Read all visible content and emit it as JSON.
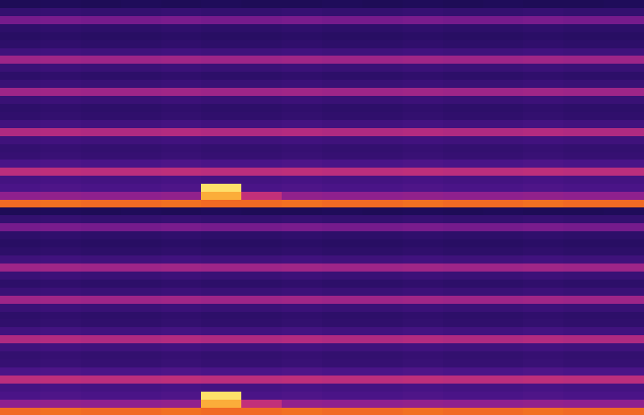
{
  "chart_data": [
    {
      "type": "heatmap",
      "tick_labels": false,
      "zlim": [
        0,
        100
      ],
      "cells": [
        [
          14,
          15,
          14,
          15,
          14,
          15,
          14,
          14,
          15,
          14,
          15,
          14,
          15,
          14,
          14,
          15
        ],
        [
          22,
          23,
          22,
          22,
          23,
          22,
          22,
          23,
          22,
          22,
          23,
          22,
          22,
          23,
          22,
          22
        ],
        [
          40,
          41,
          40,
          40,
          41,
          40,
          40,
          41,
          40,
          40,
          41,
          40,
          40,
          41,
          40,
          40
        ],
        [
          20,
          21,
          20,
          20,
          21,
          20,
          20,
          21,
          20,
          20,
          21,
          20,
          20,
          21,
          20,
          20
        ],
        [
          18,
          19,
          18,
          18,
          19,
          18,
          18,
          19,
          18,
          18,
          19,
          18,
          18,
          19,
          18,
          18
        ],
        [
          20,
          21,
          20,
          20,
          21,
          20,
          20,
          21,
          20,
          20,
          21,
          20,
          20,
          21,
          20,
          20
        ],
        [
          26,
          27,
          26,
          26,
          27,
          26,
          26,
          27,
          26,
          26,
          27,
          26,
          26,
          27,
          26,
          26
        ],
        [
          50,
          51,
          50,
          50,
          51,
          50,
          50,
          51,
          50,
          50,
          51,
          50,
          50,
          51,
          50,
          50
        ],
        [
          24,
          25,
          24,
          24,
          25,
          24,
          24,
          25,
          24,
          24,
          25,
          24,
          24,
          25,
          24,
          24
        ],
        [
          20,
          21,
          20,
          20,
          21,
          20,
          20,
          21,
          20,
          20,
          21,
          20,
          20,
          21,
          20,
          20
        ],
        [
          24,
          25,
          24,
          24,
          25,
          24,
          24,
          25,
          24,
          24,
          25,
          24,
          24,
          25,
          24,
          24
        ],
        [
          50,
          51,
          50,
          50,
          51,
          50,
          50,
          51,
          50,
          50,
          51,
          50,
          50,
          51,
          50,
          50
        ],
        [
          24,
          25,
          24,
          24,
          25,
          24,
          24,
          25,
          24,
          24,
          25,
          24,
          24,
          25,
          24,
          24
        ],
        [
          20,
          21,
          20,
          20,
          21,
          20,
          20,
          21,
          20,
          20,
          21,
          20,
          20,
          21,
          20,
          20
        ],
        [
          21,
          22,
          21,
          21,
          22,
          21,
          21,
          22,
          21,
          21,
          22,
          21,
          21,
          22,
          21,
          21
        ],
        [
          27,
          28,
          27,
          27,
          28,
          27,
          27,
          28,
          27,
          27,
          28,
          27,
          27,
          28,
          27,
          27
        ],
        [
          55,
          56,
          55,
          55,
          56,
          55,
          55,
          56,
          55,
          55,
          56,
          55,
          55,
          56,
          55,
          55
        ],
        [
          26,
          27,
          26,
          26,
          27,
          26,
          26,
          27,
          26,
          26,
          27,
          26,
          26,
          27,
          26,
          26
        ],
        [
          22,
          23,
          22,
          22,
          23,
          22,
          22,
          23,
          22,
          22,
          23,
          22,
          22,
          23,
          22,
          22
        ],
        [
          23,
          24,
          23,
          23,
          24,
          23,
          23,
          24,
          23,
          23,
          24,
          23,
          23,
          24,
          23,
          23
        ],
        [
          30,
          31,
          30,
          30,
          31,
          30,
          30,
          31,
          30,
          30,
          31,
          30,
          30,
          31,
          30,
          30
        ],
        [
          58,
          59,
          58,
          58,
          59,
          58,
          58,
          59,
          58,
          58,
          59,
          58,
          58,
          59,
          58,
          58
        ],
        [
          28,
          29,
          28,
          28,
          29,
          28,
          28,
          29,
          28,
          28,
          29,
          28,
          28,
          29,
          28,
          28
        ],
        [
          30,
          31,
          30,
          30,
          31,
          98,
          30,
          31,
          30,
          30,
          31,
          30,
          30,
          31,
          30,
          30
        ],
        [
          46,
          47,
          46,
          46,
          47,
          92,
          60,
          47,
          46,
          46,
          47,
          46,
          46,
          47,
          46,
          46
        ],
        [
          82,
          83,
          82,
          82,
          83,
          82,
          82,
          83,
          82,
          82,
          83,
          82,
          82,
          83,
          82,
          82
        ]
      ]
    },
    {
      "type": "heatmap",
      "tick_labels": false,
      "zlim": [
        0,
        100
      ],
      "cells": [
        [
          14,
          15,
          14,
          15,
          14,
          15,
          14,
          14,
          15,
          14,
          15,
          14,
          15,
          14,
          14,
          15
        ],
        [
          22,
          23,
          22,
          22,
          23,
          22,
          22,
          23,
          22,
          22,
          23,
          22,
          22,
          23,
          22,
          22
        ],
        [
          40,
          41,
          40,
          40,
          41,
          40,
          40,
          41,
          40,
          40,
          41,
          40,
          40,
          41,
          40,
          40
        ],
        [
          20,
          21,
          20,
          20,
          21,
          20,
          20,
          21,
          20,
          20,
          21,
          20,
          20,
          21,
          20,
          20
        ],
        [
          18,
          19,
          18,
          18,
          19,
          18,
          18,
          19,
          18,
          18,
          19,
          18,
          18,
          19,
          18,
          18
        ],
        [
          20,
          21,
          20,
          20,
          21,
          20,
          20,
          21,
          20,
          20,
          21,
          20,
          20,
          21,
          20,
          20
        ],
        [
          26,
          27,
          26,
          26,
          27,
          26,
          26,
          27,
          26,
          26,
          27,
          26,
          26,
          27,
          26,
          26
        ],
        [
          50,
          51,
          50,
          50,
          51,
          50,
          50,
          51,
          50,
          50,
          51,
          50,
          50,
          51,
          50,
          50
        ],
        [
          24,
          25,
          24,
          24,
          25,
          24,
          24,
          25,
          24,
          24,
          25,
          24,
          24,
          25,
          24,
          24
        ],
        [
          20,
          21,
          20,
          20,
          21,
          20,
          20,
          21,
          20,
          20,
          21,
          20,
          20,
          21,
          20,
          20
        ],
        [
          24,
          25,
          24,
          24,
          25,
          24,
          24,
          25,
          24,
          24,
          25,
          24,
          24,
          25,
          24,
          24
        ],
        [
          50,
          51,
          50,
          50,
          51,
          50,
          50,
          51,
          50,
          50,
          51,
          50,
          50,
          51,
          50,
          50
        ],
        [
          24,
          25,
          24,
          24,
          25,
          24,
          24,
          25,
          24,
          24,
          25,
          24,
          24,
          25,
          24,
          24
        ],
        [
          20,
          21,
          20,
          20,
          21,
          20,
          20,
          21,
          20,
          20,
          21,
          20,
          20,
          21,
          20,
          20
        ],
        [
          21,
          22,
          21,
          21,
          22,
          21,
          21,
          22,
          21,
          21,
          22,
          21,
          21,
          22,
          21,
          21
        ],
        [
          27,
          28,
          27,
          27,
          28,
          27,
          27,
          28,
          27,
          27,
          28,
          27,
          27,
          28,
          27,
          27
        ],
        [
          55,
          56,
          55,
          55,
          56,
          55,
          55,
          56,
          55,
          55,
          56,
          55,
          55,
          56,
          55,
          55
        ],
        [
          26,
          27,
          26,
          26,
          27,
          26,
          26,
          27,
          26,
          26,
          27,
          26,
          26,
          27,
          26,
          26
        ],
        [
          22,
          23,
          22,
          22,
          23,
          22,
          22,
          23,
          22,
          22,
          23,
          22,
          22,
          23,
          22,
          22
        ],
        [
          23,
          24,
          23,
          23,
          24,
          23,
          23,
          24,
          23,
          23,
          24,
          23,
          23,
          24,
          23,
          23
        ],
        [
          30,
          31,
          30,
          30,
          31,
          30,
          30,
          31,
          30,
          30,
          31,
          30,
          30,
          31,
          30,
          30
        ],
        [
          58,
          59,
          58,
          58,
          59,
          58,
          58,
          59,
          58,
          58,
          59,
          58,
          58,
          59,
          58,
          58
        ],
        [
          28,
          29,
          28,
          28,
          29,
          28,
          28,
          29,
          28,
          28,
          29,
          28,
          28,
          29,
          28,
          28
        ],
        [
          30,
          31,
          30,
          30,
          31,
          98,
          30,
          31,
          30,
          30,
          31,
          30,
          30,
          31,
          30,
          30
        ],
        [
          46,
          47,
          46,
          46,
          47,
          92,
          60,
          47,
          46,
          46,
          47,
          46,
          46,
          47,
          46,
          46
        ],
        [
          82,
          83,
          82,
          82,
          83,
          82,
          82,
          83,
          82,
          82,
          83,
          82,
          82,
          83,
          82,
          82
        ]
      ]
    }
  ]
}
